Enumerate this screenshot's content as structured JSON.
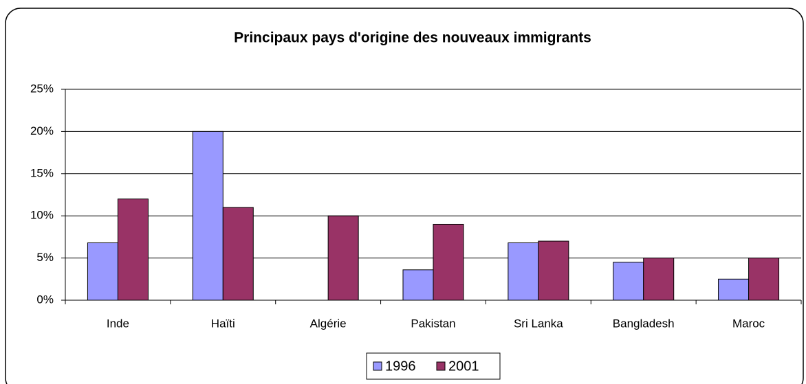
{
  "chart_data": {
    "type": "bar",
    "title": "Principaux pays d'origine des nouveaux immigrants",
    "categories": [
      "Inde",
      "Haïti",
      "Algérie",
      "Pakistan",
      "Sri Lanka",
      "Bangladesh",
      "Maroc"
    ],
    "series": [
      {
        "name": "1996",
        "color": "#9999ff",
        "values": [
          6.8,
          20,
          0,
          3.6,
          6.8,
          4.5,
          2.5
        ]
      },
      {
        "name": "2001",
        "color": "#993366",
        "values": [
          12,
          11,
          10,
          9,
          7,
          5,
          5
        ]
      }
    ],
    "ylim": [
      0,
      25
    ],
    "yticks": [
      {
        "value": 0,
        "label": "0%"
      },
      {
        "value": 5,
        "label": "5%"
      },
      {
        "value": 10,
        "label": "10%"
      },
      {
        "value": 15,
        "label": "15%"
      },
      {
        "value": 20,
        "label": "20%"
      },
      {
        "value": 25,
        "label": "25%"
      }
    ],
    "grid": true,
    "legend": "bottom"
  }
}
